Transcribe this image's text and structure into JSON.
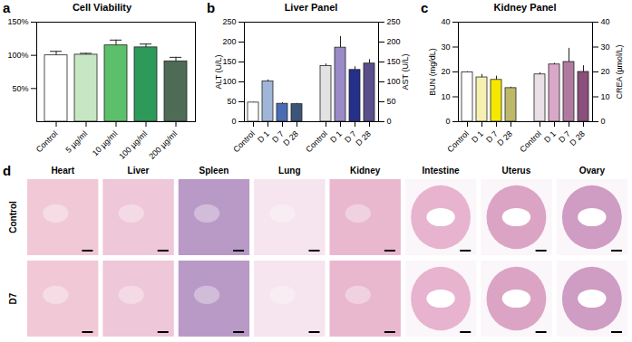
{
  "chart_data": [
    {
      "panel_label": "a",
      "type": "bar",
      "title": "Cell Viability",
      "categories": [
        "Control",
        "5 µg/ml",
        "10 µg/ml",
        "100 µg/ml",
        "200 µg/ml"
      ],
      "values": [
        100,
        101,
        115,
        112,
        91
      ],
      "errors": [
        6,
        2,
        8,
        5,
        6
      ],
      "colors": [
        "#ffffff",
        "#c7e6c4",
        "#5cc06a",
        "#2e9a5a",
        "#4d6b55"
      ],
      "ylim": [
        0,
        150
      ],
      "yticks": [
        {
          "value": 50,
          "label": "50%"
        },
        {
          "value": 100,
          "label": "100%"
        },
        {
          "value": 150,
          "label": "150%"
        }
      ]
    },
    {
      "panel_label": "b",
      "type": "bar",
      "title": "Liver Panel",
      "categories": [
        "Control",
        "D 1",
        "D 7",
        "D 28"
      ],
      "series": [
        {
          "name": "ALT (U/L)",
          "values": [
            48,
            101,
            45,
            44
          ],
          "errors": [
            1,
            4,
            3,
            2
          ],
          "colors": [
            "#ffffff",
            "#9fb6d8",
            "#4a6cb5",
            "#3b5478"
          ]
        },
        {
          "name": "AST (U/L)",
          "axis": "y2",
          "values": [
            140,
            186,
            130,
            146
          ],
          "errors": [
            5,
            28,
            8,
            10
          ],
          "colors": [
            "#e2e2e2",
            "#9b8ac8",
            "#25308a",
            "#5a4f8a"
          ]
        }
      ],
      "ylim": [
        0,
        250
      ],
      "yticks": [
        0,
        50,
        100,
        150,
        200,
        250
      ],
      "y2lim": [
        0,
        250
      ],
      "y2ticks": [
        0,
        50,
        100,
        150,
        200,
        250
      ]
    },
    {
      "panel_label": "c",
      "type": "bar",
      "title": "Kidney Panel",
      "categories": [
        "Control",
        "D 1",
        "D 7",
        "D 28"
      ],
      "series": [
        {
          "name": "BUN (mg/dL)",
          "values": [
            19.8,
            17.8,
            16.8,
            13.5
          ],
          "errors": [
            0.3,
            1.2,
            1.5,
            0.4
          ],
          "colors": [
            "#ffffff",
            "#f6f0b0",
            "#f5e800",
            "#bdb86a"
          ]
        },
        {
          "name": "CREA (µmol/L)",
          "axis": "y2",
          "values": [
            19,
            23,
            24,
            20
          ],
          "errors": [
            0.6,
            0.5,
            5.5,
            2.5
          ],
          "colors": [
            "#eadfe6",
            "#d9a8c8",
            "#b07aa0",
            "#8a4f7a"
          ]
        }
      ],
      "ylim": [
        0,
        40
      ],
      "yticks": [
        0,
        10,
        20,
        30,
        40
      ],
      "y2lim": [
        0,
        40
      ],
      "y2ticks": [
        0,
        10,
        20,
        30,
        40
      ]
    }
  ],
  "panel_d": {
    "panel_label": "d",
    "columns": [
      "Heart",
      "Liver",
      "Spleen",
      "Lung",
      "Kidney",
      "Intestine",
      "Uterus",
      "Ovary"
    ],
    "rows": [
      "Control",
      "D7"
    ]
  }
}
